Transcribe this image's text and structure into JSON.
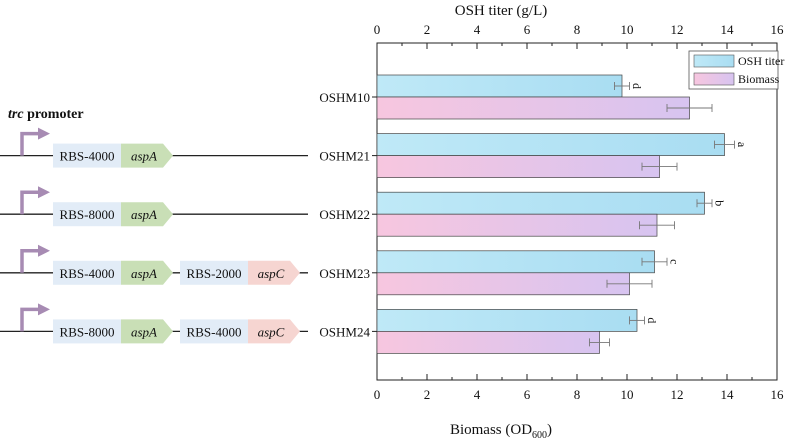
{
  "chart_data": {
    "type": "bar",
    "orientation": "horizontal",
    "categories": [
      "OSHM10",
      "OSHM21",
      "OSHM22",
      "OSHM23",
      "OSHM24"
    ],
    "top_axis": {
      "label": "OSH titer (g/L)",
      "range": [
        0,
        16
      ],
      "ticks": [
        0,
        2,
        4,
        6,
        8,
        10,
        12,
        14,
        16
      ]
    },
    "bottom_axis": {
      "label": "Biomass (OD",
      "label_subscript": "600",
      "label_suffix": ")",
      "range": [
        0,
        16
      ],
      "ticks": [
        0,
        2,
        4,
        6,
        8,
        10,
        12,
        14,
        16
      ]
    },
    "series": [
      {
        "name": "OSH titer",
        "values": [
          9.8,
          13.9,
          13.1,
          11.1,
          10.4
        ],
        "errors": [
          0.3,
          0.4,
          0.3,
          0.5,
          0.3
        ],
        "letters": [
          "d",
          "a",
          "b",
          "c",
          "d"
        ],
        "color_start": "#bfe9f7",
        "color_end": "#a9ddf2"
      },
      {
        "name": "Biomass",
        "values": [
          12.5,
          11.3,
          11.2,
          10.1,
          8.9
        ],
        "errors": [
          0.9,
          0.7,
          0.7,
          0.9,
          0.4
        ],
        "color_start": "#f7c6df",
        "color_end": "#d7c4f0"
      }
    ],
    "legend": {
      "position": "top-right"
    },
    "grid": false
  },
  "constructs": {
    "promoter_label_italic": "trc",
    "promoter_label_rest": " promoter",
    "rows": [
      {
        "parts": [
          {
            "rbs": "RBS-4000",
            "gene": "aspA"
          }
        ]
      },
      {
        "parts": [
          {
            "rbs": "RBS-8000",
            "gene": "aspA"
          }
        ]
      },
      {
        "parts": [
          {
            "rbs": "RBS-4000",
            "gene": "aspA"
          },
          {
            "rbs": "RBS-2000",
            "gene": "aspC"
          }
        ]
      },
      {
        "parts": [
          {
            "rbs": "RBS-8000",
            "gene": "aspA"
          },
          {
            "rbs": "RBS-4000",
            "gene": "aspC"
          }
        ]
      }
    ],
    "colors": {
      "rbs": "#e2ecf7",
      "aspA": "#c9dfb6",
      "aspC": "#f6d5d1",
      "promoter": "#a78bb3",
      "line": "#222222"
    }
  }
}
